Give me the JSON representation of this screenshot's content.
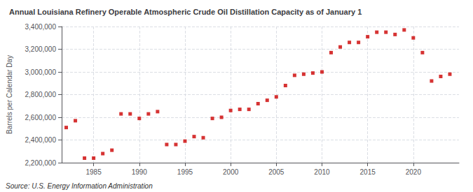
{
  "chart_data": {
    "type": "scatter",
    "title": "Annual Louisiana Refinery Operable Atmospheric Crude Oil Distillation Capacity as of January 1",
    "ylabel": "Barrels per Calendar Day",
    "source": "Source: U.S. Energy Information Administration",
    "x": [
      1982,
      1983,
      1984,
      1985,
      1986,
      1987,
      1988,
      1989,
      1990,
      1991,
      1992,
      1993,
      1994,
      1995,
      1996,
      1997,
      1998,
      1999,
      2000,
      2001,
      2002,
      2003,
      2004,
      2005,
      2006,
      2007,
      2008,
      2009,
      2010,
      2011,
      2012,
      2013,
      2014,
      2015,
      2016,
      2017,
      2018,
      2019,
      2020,
      2021,
      2022,
      2023,
      2024
    ],
    "values": [
      2510000,
      2570000,
      2240000,
      2240000,
      2280000,
      2310000,
      2630000,
      2630000,
      2590000,
      2630000,
      2650000,
      2360000,
      2360000,
      2390000,
      2430000,
      2420000,
      2590000,
      2600000,
      2660000,
      2670000,
      2670000,
      2720000,
      2750000,
      2780000,
      2880000,
      2970000,
      2980000,
      2990000,
      3000000,
      3170000,
      3220000,
      3260000,
      3260000,
      3310000,
      3350000,
      3350000,
      3330000,
      3370000,
      3300000,
      3170000,
      2920000,
      2960000,
      2980000
    ],
    "color": "#cc0000",
    "marker": "square",
    "xlim": [
      1981.5,
      2025
    ],
    "xticks": [
      1985,
      1990,
      1995,
      2000,
      2005,
      2010,
      2015,
      2020
    ],
    "ylim": [
      2200000,
      3400000
    ],
    "yticks": [
      {
        "value": 2200000,
        "label": "2,200,000"
      },
      {
        "value": 2400000,
        "label": "2,400,000"
      },
      {
        "value": 2600000,
        "label": "2,600,000"
      },
      {
        "value": 2800000,
        "label": "2,800,000"
      },
      {
        "value": 3000000,
        "label": "3,000,000"
      },
      {
        "value": 3200000,
        "label": "3,200,000"
      },
      {
        "value": 3400000,
        "label": "3,400,000"
      }
    ],
    "grid": true
  }
}
